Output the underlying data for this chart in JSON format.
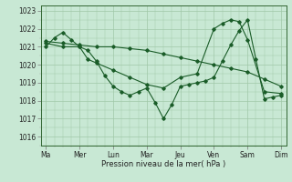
{
  "xlabel": "Pression niveau de la mer( hPa )",
  "background_color": "#c8e8d4",
  "grid_color": "#a0c8a8",
  "line_color": "#1a5c28",
  "ylim": [
    1015.5,
    1023.3
  ],
  "xlim": [
    -0.15,
    7.15
  ],
  "x_labels": [
    "Ma",
    "Mer",
    "Lun",
    "Mar",
    "Jeu",
    "Ven",
    "Sam",
    "Dim"
  ],
  "x_ticks": [
    0,
    1,
    2,
    3,
    4,
    5,
    6,
    7
  ],
  "yticks": [
    1016,
    1017,
    1018,
    1019,
    1020,
    1021,
    1022,
    1023
  ],
  "series1_x": [
    0,
    0.25,
    0.5,
    0.75,
    1.0,
    1.25,
    1.5,
    1.75,
    2.0,
    2.25,
    2.5,
    2.75,
    3.0,
    3.25,
    3.5,
    3.75,
    4.0,
    4.25,
    4.5,
    4.75,
    5.0,
    5.25,
    5.5,
    5.75,
    6.0,
    6.25,
    6.5,
    6.75,
    7.0
  ],
  "series1_y": [
    1021.0,
    1021.5,
    1021.8,
    1021.4,
    1021.0,
    1020.8,
    1020.2,
    1019.4,
    1018.8,
    1018.5,
    1018.3,
    1018.5,
    1018.7,
    1017.9,
    1017.0,
    1017.8,
    1018.8,
    1018.9,
    1019.0,
    1019.1,
    1019.3,
    1020.2,
    1021.1,
    1021.9,
    1022.5,
    1020.3,
    1018.1,
    1018.2,
    1018.3
  ],
  "series2_x": [
    0,
    0.5,
    1.0,
    1.5,
    2.0,
    2.5,
    3.0,
    3.5,
    4.0,
    4.5,
    5.0,
    5.5,
    6.0,
    6.5,
    7.0
  ],
  "series2_y": [
    1021.3,
    1021.2,
    1021.1,
    1021.0,
    1021.0,
    1020.9,
    1020.8,
    1020.6,
    1020.4,
    1020.2,
    1020.0,
    1019.8,
    1019.6,
    1019.2,
    1018.8
  ],
  "series3_x": [
    0,
    0.5,
    1.0,
    1.25,
    1.5,
    2.0,
    2.5,
    3.0,
    3.5,
    4.0,
    4.5,
    5.0,
    5.25,
    5.5,
    5.75,
    6.0,
    6.5,
    7.0
  ],
  "series3_y": [
    1021.2,
    1021.0,
    1021.0,
    1020.3,
    1020.1,
    1019.7,
    1019.3,
    1018.9,
    1018.7,
    1019.3,
    1019.5,
    1022.0,
    1022.3,
    1022.5,
    1022.4,
    1021.4,
    1018.5,
    1018.4
  ]
}
